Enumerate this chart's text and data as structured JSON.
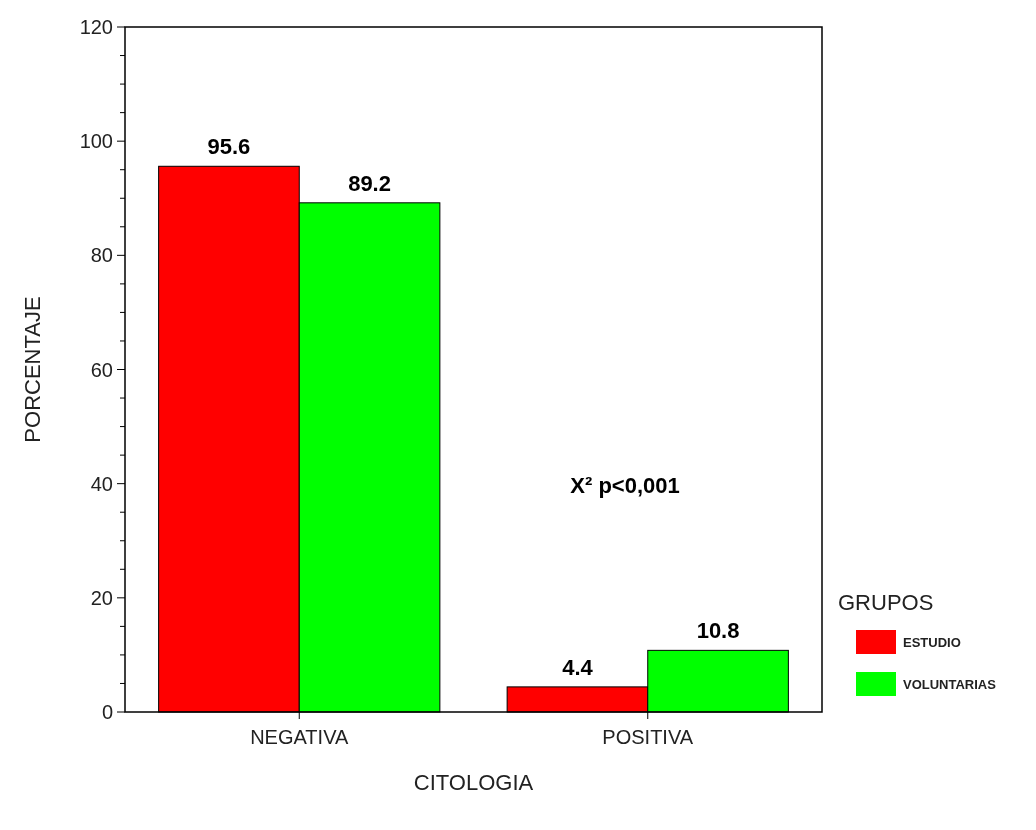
{
  "chart_data": {
    "type": "bar",
    "xlabel": "CITOLOGIA",
    "ylabel": "PORCENTAJE",
    "legend_title": "GRUPOS",
    "legend": "right",
    "data_labels": true,
    "grid": false,
    "categories": [
      "NEGATIVA",
      "POSITIVA"
    ],
    "series": [
      {
        "name": "ESTUDIO",
        "color": "#ff0000",
        "values": [
          95.6,
          4.4
        ]
      },
      {
        "name": "VOLUNTARIAS",
        "color": "#00ff00",
        "values": [
          89.2,
          10.8
        ]
      }
    ],
    "ylim": [
      0,
      120
    ],
    "yticks": [
      0,
      {
        "value": 5,
        "label": null
      },
      {
        "value": 10,
        "label": null
      },
      {
        "value": 15,
        "label": null
      },
      20,
      {
        "value": 25,
        "label": null
      },
      {
        "value": 30,
        "label": null
      },
      {
        "value": 35,
        "label": null
      },
      40,
      {
        "value": 45,
        "label": null
      },
      {
        "value": 50,
        "label": null
      },
      {
        "value": 55,
        "label": null
      },
      60,
      {
        "value": 65,
        "label": null
      },
      {
        "value": 70,
        "label": null
      },
      {
        "value": 75,
        "label": null
      },
      80,
      {
        "value": 85,
        "label": null
      },
      {
        "value": 90,
        "label": null
      },
      {
        "value": 95,
        "label": null
      },
      100,
      {
        "value": 105,
        "label": null
      },
      {
        "value": 110,
        "label": null
      },
      {
        "value": 115,
        "label": null
      },
      120
    ],
    "annotations": [
      "X² p<0,001"
    ]
  }
}
